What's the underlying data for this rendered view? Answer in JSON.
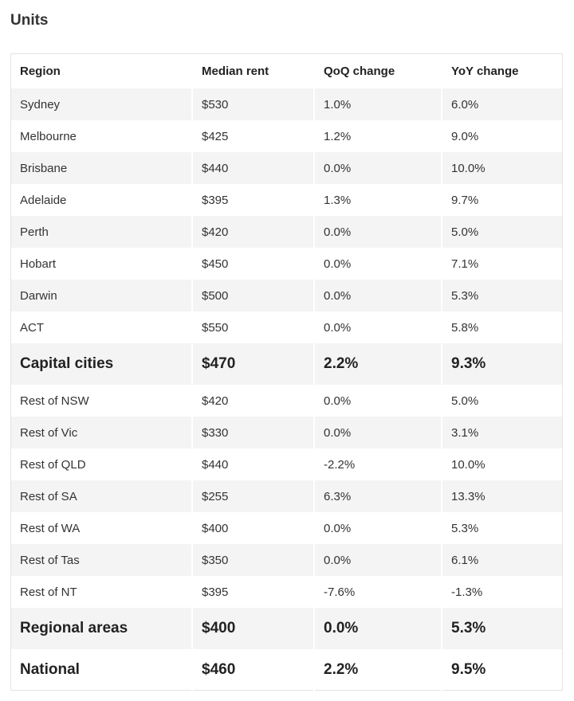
{
  "page": {
    "title": "Units"
  },
  "table": {
    "headers": [
      "Region",
      "Median rent",
      "QoQ change",
      "YoY change"
    ],
    "rows": [
      {
        "region": "Sydney",
        "rent": "$530",
        "qoq": "1.0%",
        "yoy": "6.0%",
        "shade": true,
        "total": false
      },
      {
        "region": "Melbourne",
        "rent": "$425",
        "qoq": "1.2%",
        "yoy": "9.0%",
        "shade": false,
        "total": false
      },
      {
        "region": "Brisbane",
        "rent": "$440",
        "qoq": "0.0%",
        "yoy": "10.0%",
        "shade": true,
        "total": false
      },
      {
        "region": "Adelaide",
        "rent": "$395",
        "qoq": "1.3%",
        "yoy": "9.7%",
        "shade": false,
        "total": false
      },
      {
        "region": "Perth",
        "rent": "$420",
        "qoq": "0.0%",
        "yoy": "5.0%",
        "shade": true,
        "total": false
      },
      {
        "region": "Hobart",
        "rent": "$450",
        "qoq": "0.0%",
        "yoy": "7.1%",
        "shade": false,
        "total": false
      },
      {
        "region": "Darwin",
        "rent": "$500",
        "qoq": "0.0%",
        "yoy": "5.3%",
        "shade": true,
        "total": false
      },
      {
        "region": "ACT",
        "rent": "$550",
        "qoq": "0.0%",
        "yoy": "5.8%",
        "shade": false,
        "total": false
      },
      {
        "region": "Capital cities",
        "rent": "$470",
        "qoq": "2.2%",
        "yoy": "9.3%",
        "shade": true,
        "total": true
      },
      {
        "region": "Rest of NSW",
        "rent": "$420",
        "qoq": "0.0%",
        "yoy": "5.0%",
        "shade": false,
        "total": false
      },
      {
        "region": "Rest of Vic",
        "rent": "$330",
        "qoq": "0.0%",
        "yoy": "3.1%",
        "shade": true,
        "total": false
      },
      {
        "region": "Rest of QLD",
        "rent": "$440",
        "qoq": "-2.2%",
        "yoy": "10.0%",
        "shade": false,
        "total": false
      },
      {
        "region": "Rest of SA",
        "rent": "$255",
        "qoq": "6.3%",
        "yoy": "13.3%",
        "shade": true,
        "total": false
      },
      {
        "region": "Rest of WA",
        "rent": "$400",
        "qoq": "0.0%",
        "yoy": "5.3%",
        "shade": false,
        "total": false
      },
      {
        "region": "Rest of Tas",
        "rent": "$350",
        "qoq": "0.0%",
        "yoy": "6.1%",
        "shade": true,
        "total": false
      },
      {
        "region": "Rest of NT",
        "rent": "$395",
        "qoq": "-7.6%",
        "yoy": "-1.3%",
        "shade": false,
        "total": false
      },
      {
        "region": "Regional areas",
        "rent": "$400",
        "qoq": "0.0%",
        "yoy": "5.3%",
        "shade": true,
        "total": true
      },
      {
        "region": "National",
        "rent": "$460",
        "qoq": "2.2%",
        "yoy": "9.5%",
        "shade": false,
        "total": true
      }
    ]
  }
}
